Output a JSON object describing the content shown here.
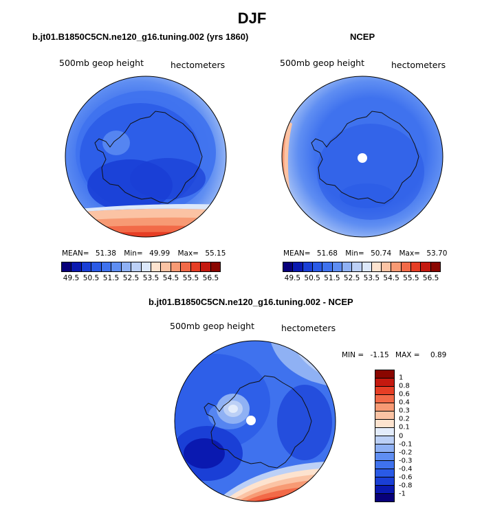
{
  "figure": {
    "title": "DJF"
  },
  "colors": {
    "geop_scale": [
      "#08007a",
      "#0a19b0",
      "#1a3fd6",
      "#2a5ae6",
      "#3f72ee",
      "#5f8ef2",
      "#8fb1f4",
      "#bcd0f6",
      "#dce8fa",
      "#fde3cf",
      "#fbc3a4",
      "#f79a74",
      "#f26a48",
      "#e63e25",
      "#c4190f",
      "#8a0600"
    ],
    "diff_scale": [
      "#08007a",
      "#0a19b0",
      "#1a3fd6",
      "#2a5ae6",
      "#3f72ee",
      "#5f8ef2",
      "#8fb1f4",
      "#bcd0f6",
      "#e3ecfb",
      "#fde3cf",
      "#fbc3a4",
      "#f79a74",
      "#f26a48",
      "#e63e25",
      "#c4190f",
      "#8a0600"
    ],
    "coastline": "#111111",
    "pole_marker": "#ffffff"
  },
  "panels": [
    {
      "title": "b.jt01.B1850C5CN.ne120_g16.tuning.002 (yrs 1860)",
      "left_label": "500mb geop height",
      "right_label": "hectometers",
      "stats": {
        "mean_label": "MEAN=",
        "mean": "51.38",
        "min_label": "Min=",
        "min": "49.99",
        "max_label": "Max=",
        "max": "55.15"
      },
      "colorbar_ticks": [
        "49.5",
        "50.5",
        "51.5",
        "52.5",
        "53.5",
        "54.5",
        "55.5",
        "56.5"
      ]
    },
    {
      "title": "NCEP",
      "left_label": "500mb geop height",
      "right_label": "hectometers",
      "stats": {
        "mean_label": "MEAN=",
        "mean": "51.68",
        "min_label": "Min=",
        "min": "50.74",
        "max_label": "Max=",
        "max": "53.70"
      },
      "colorbar_ticks": [
        "49.5",
        "50.5",
        "51.5",
        "52.5",
        "53.5",
        "54.5",
        "55.5",
        "56.5"
      ]
    },
    {
      "title": "b.jt01.B1850C5CN.ne120_g16.tuning.002 - NCEP",
      "left_label": "500mb geop height",
      "right_label": "hectometers",
      "stats": {
        "min_label": "MIN =",
        "min": "-1.15",
        "max_label": "MAX =",
        "max": "0.89"
      },
      "colorbar_ticks": [
        "1",
        "0.8",
        "0.6",
        "0.4",
        "0.3",
        "0.2",
        "0.1",
        "0",
        "-0.1",
        "-0.2",
        "-0.3",
        "-0.4",
        "-0.6",
        "-0.8",
        "-1"
      ]
    }
  ],
  "chart_data": [
    {
      "type": "heatmap",
      "projection": "south-polar-stereographic",
      "title": "b.jt01.B1850C5CN.ne120_g16.tuning.002 (yrs 1860)",
      "variable": "500mb geop height",
      "units": "hectometers",
      "mean": 51.38,
      "min": 49.99,
      "max": 55.15,
      "contour_levels": [
        49.5,
        50.5,
        51.5,
        52.5,
        53.5,
        54.5,
        55.5,
        56.5
      ]
    },
    {
      "type": "heatmap",
      "projection": "south-polar-stereographic",
      "title": "NCEP",
      "variable": "500mb geop height",
      "units": "hectometers",
      "mean": 51.68,
      "min": 50.74,
      "max": 53.7,
      "contour_levels": [
        49.5,
        50.5,
        51.5,
        52.5,
        53.5,
        54.5,
        55.5,
        56.5
      ]
    },
    {
      "type": "heatmap",
      "projection": "south-polar-stereographic",
      "title": "b.jt01.B1850C5CN.ne120_g16.tuning.002 - NCEP",
      "variable": "500mb geop height",
      "units": "hectometers",
      "min": -1.15,
      "max": 0.89,
      "contour_levels": [
        -1,
        -0.8,
        -0.6,
        -0.4,
        -0.3,
        -0.2,
        -0.1,
        0,
        0.1,
        0.2,
        0.3,
        0.4,
        0.6,
        0.8,
        1
      ]
    }
  ]
}
